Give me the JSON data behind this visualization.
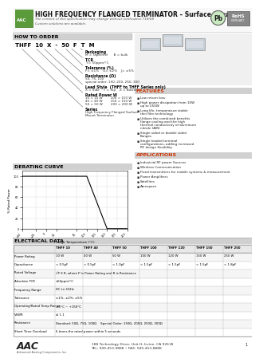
{
  "title": "HIGH FREQUENCY FLANGED TERMINATOR – Surface Mount",
  "subtitle": "The content of this specification may change without notification T19/08",
  "custom_note": "Custom solutions are available.",
  "how_to_order_title": "HOW TO ORDER",
  "order_code": "THFF 10 X - 50 F T M",
  "features_title": "FEATURES",
  "features": [
    "Low return loss",
    "High power dissipation from 10W up to 250W",
    "Long life, temperature stable thin film technology",
    "Utilizes the combined benefits flange cooling and the high thermal conductivity of aluminum nitride (AlN)",
    "Single sided or double sided flanges",
    "Single leaded terminal configurations, adding increased RF design flexibility"
  ],
  "applications_title": "APPLICATIONS",
  "applications": [
    "Industrial RF power Sources",
    "Wireless Communication",
    "Fixed transmitters for mobile systems & measurement",
    "Power Amplifiers",
    "Satellites",
    "Aerospace"
  ],
  "derating_title": "DERATING CURVE",
  "derating_xlabel": "Flange Temperature (°C)",
  "derating_ylabel": "% Rated Power",
  "electrical_title": "ELECTRICAL DATA",
  "elec_columns": [
    "THFF 10",
    "THFF 40",
    "THFF 50",
    "THFF 100",
    "THFF 120",
    "THFF 150",
    "THFF 250"
  ],
  "footer_text": "188 Technology Drive, Unit H, Irvine, CA 92618\nTEL: 949-453-9888 • FAX: 949-453-8888",
  "bg_color": "#ffffff",
  "section_bar_color": "#d0d0d0",
  "table_header_color": "#e8e8e8",
  "table_alt_color": "#f5f5f5"
}
